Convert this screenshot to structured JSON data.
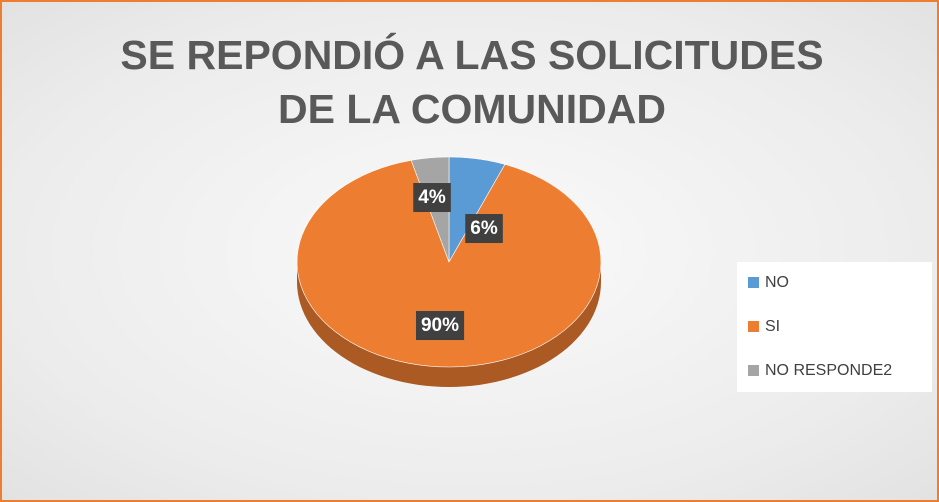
{
  "chart_data": {
    "type": "pie",
    "title": "SE REPONDIÓ A LAS SOLICITUDES DE LA COMUNIDAD",
    "categories": [
      "NO",
      "SI",
      "NO RESPONDE2"
    ],
    "values": [
      6,
      90,
      4
    ],
    "value_labels": [
      "6%",
      "90%",
      "4%"
    ],
    "colors": [
      "#5b9bd5",
      "#ed7d31",
      "#a5a5a5"
    ],
    "legend": "right"
  }
}
